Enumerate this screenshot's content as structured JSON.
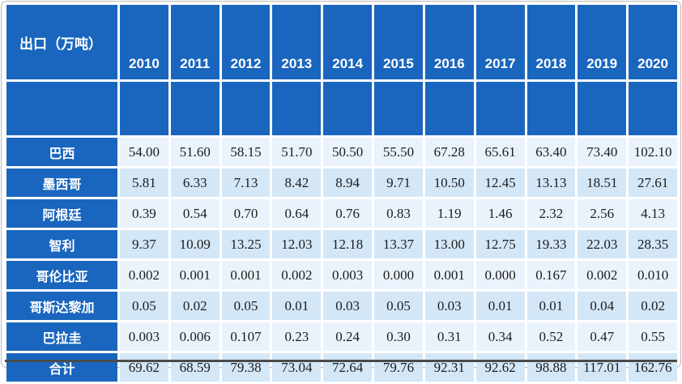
{
  "colors": {
    "header-blue": "#1A66BE",
    "row-light": "#EAF3FC",
    "row-alt": "#D4E7F7",
    "cell-text": "#1C1C1C",
    "rule-dark": "#4A4A4A",
    "frame-gray": "#B8B8B8"
  },
  "chart_data": {
    "type": "table",
    "title": "出口（万吨）",
    "columns": [
      "2010",
      "2011",
      "2012",
      "2013",
      "2014",
      "2015",
      "2016",
      "2017",
      "2018",
      "2019",
      "2020"
    ],
    "series": [
      {
        "name": "巴西",
        "values": [
          "54.00",
          "51.60",
          "58.15",
          "51.70",
          "50.50",
          "55.50",
          "67.28",
          "65.61",
          "63.40",
          "73.40",
          "102.10"
        ]
      },
      {
        "name": "墨西哥",
        "values": [
          "5.81",
          "6.33",
          "7.13",
          "8.42",
          "8.94",
          "9.71",
          "10.50",
          "12.45",
          "13.13",
          "18.51",
          "27.61"
        ]
      },
      {
        "name": "阿根廷",
        "values": [
          "0.39",
          "0.54",
          "0.70",
          "0.64",
          "0.76",
          "0.83",
          "1.19",
          "1.46",
          "2.32",
          "2.56",
          "4.13"
        ]
      },
      {
        "name": "智利",
        "values": [
          "9.37",
          "10.09",
          "13.25",
          "12.03",
          "12.18",
          "13.37",
          "13.00",
          "12.75",
          "19.33",
          "22.03",
          "28.35"
        ]
      },
      {
        "name": "哥伦比亚",
        "values": [
          "0.002",
          "0.001",
          "0.001",
          "0.002",
          "0.003",
          "0.000",
          "0.001",
          "0.000",
          "0.167",
          "0.002",
          "0.010"
        ]
      },
      {
        "name": "哥斯达黎加",
        "values": [
          "0.05",
          "0.02",
          "0.05",
          "0.01",
          "0.03",
          "0.05",
          "0.03",
          "0.01",
          "0.01",
          "0.04",
          "0.02"
        ]
      },
      {
        "name": "巴拉圭",
        "values": [
          "0.003",
          "0.006",
          "0.107",
          "0.23",
          "0.24",
          "0.30",
          "0.31",
          "0.34",
          "0.52",
          "0.47",
          "0.55"
        ]
      },
      {
        "name": "合计",
        "values": [
          "69.62",
          "68.59",
          "79.38",
          "73.04",
          "72.64",
          "79.76",
          "92.31",
          "92.62",
          "98.88",
          "117.01",
          "162.76"
        ]
      }
    ]
  }
}
